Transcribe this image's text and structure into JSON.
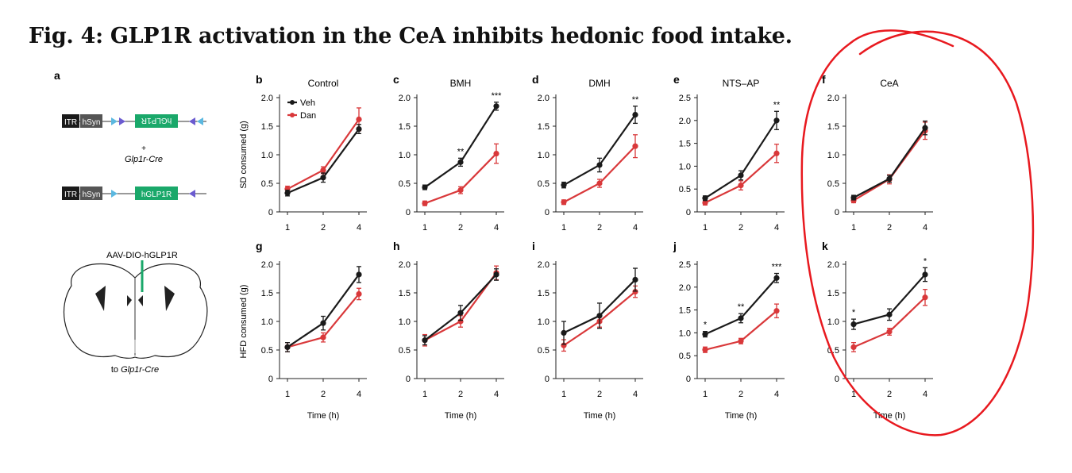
{
  "title": "Fig. 4: GLP1R activation in the CeA inhibits hedonic food intake.",
  "panel_a": {
    "letter": "a",
    "itr": "ITR",
    "hsyn": "hSyn",
    "inverted_gene": "hGLP1R",
    "plus": "+",
    "cre_line": "Glp1r-Cre",
    "gene": "hGLP1R",
    "virus": "AAV-DIO-hGLP1R",
    "target": "to Glp1r-Cre"
  },
  "colors": {
    "veh": "#1a1a1a",
    "dan": "#d9383a",
    "annotation": "#e8191f"
  },
  "row_ylabels": [
    "SD consumed (g)",
    "HFD consumed (g)"
  ],
  "xlabel": "Time (h)",
  "legend": [
    "Veh",
    "Dan"
  ],
  "chart_data": [
    {
      "type": "line",
      "panel": "b",
      "title": "Control",
      "row": 0,
      "ylabel": "SD consumed (g)",
      "x": [
        1,
        2,
        4
      ],
      "ylim": [
        0,
        2.0
      ],
      "yticks": [
        0,
        0.5,
        1.0,
        1.5,
        2.0
      ],
      "series": [
        {
          "name": "Veh",
          "values": [
            0.33,
            0.6,
            1.45
          ],
          "errors": [
            0.05,
            0.08,
            0.08
          ]
        },
        {
          "name": "Dan",
          "values": [
            0.4,
            0.73,
            1.62
          ],
          "errors": [
            0.05,
            0.06,
            0.2
          ]
        }
      ],
      "sig": [
        "",
        "",
        ""
      ],
      "legend": "top-left"
    },
    {
      "type": "line",
      "panel": "c",
      "title": "BMH",
      "row": 0,
      "x": [
        1,
        2,
        4
      ],
      "ylim": [
        0,
        2.0
      ],
      "yticks": [
        0,
        0.5,
        1.0,
        1.5,
        2.0
      ],
      "series": [
        {
          "name": "Veh",
          "values": [
            0.43,
            0.87,
            1.85
          ],
          "errors": [
            0.04,
            0.07,
            0.07
          ]
        },
        {
          "name": "Dan",
          "values": [
            0.15,
            0.38,
            1.02
          ],
          "errors": [
            0.04,
            0.06,
            0.17
          ]
        }
      ],
      "sig": [
        "",
        "**",
        "***"
      ]
    },
    {
      "type": "line",
      "panel": "d",
      "title": "DMH",
      "row": 0,
      "x": [
        1,
        2,
        4
      ],
      "ylim": [
        0,
        2.0
      ],
      "yticks": [
        0,
        0.5,
        1.0,
        1.5,
        2.0
      ],
      "series": [
        {
          "name": "Veh",
          "values": [
            0.47,
            0.82,
            1.7
          ],
          "errors": [
            0.05,
            0.12,
            0.15
          ]
        },
        {
          "name": "Dan",
          "values": [
            0.17,
            0.5,
            1.15
          ],
          "errors": [
            0.04,
            0.07,
            0.2
          ]
        }
      ],
      "sig": [
        "",
        "",
        "**"
      ]
    },
    {
      "type": "line",
      "panel": "e",
      "title": "NTS–AP",
      "row": 0,
      "x": [
        1,
        2,
        4
      ],
      "ylim": [
        0,
        2.5
      ],
      "yticks": [
        0,
        0.5,
        1.0,
        1.5,
        2.0,
        2.5
      ],
      "series": [
        {
          "name": "Veh",
          "values": [
            0.3,
            0.8,
            2.0
          ],
          "errors": [
            0.05,
            0.1,
            0.2
          ]
        },
        {
          "name": "Dan",
          "values": [
            0.2,
            0.58,
            1.28
          ],
          "errors": [
            0.05,
            0.1,
            0.2
          ]
        }
      ],
      "sig": [
        "",
        "",
        "**"
      ]
    },
    {
      "type": "line",
      "panel": "f",
      "title": "CeA",
      "row": 0,
      "x": [
        1,
        2,
        4
      ],
      "ylim": [
        0,
        2.0
      ],
      "yticks": [
        0,
        0.5,
        1.0,
        1.5,
        2.0
      ],
      "series": [
        {
          "name": "Veh",
          "values": [
            0.25,
            0.58,
            1.47
          ],
          "errors": [
            0.04,
            0.06,
            0.12
          ]
        },
        {
          "name": "Dan",
          "values": [
            0.2,
            0.57,
            1.42
          ],
          "errors": [
            0.04,
            0.08,
            0.15
          ]
        }
      ],
      "sig": [
        "",
        "",
        ""
      ]
    },
    {
      "type": "line",
      "panel": "g",
      "row": 1,
      "ylabel": "HFD consumed (g)",
      "x": [
        1,
        2,
        4
      ],
      "ylim": [
        0,
        2.0
      ],
      "yticks": [
        0,
        0.5,
        1.0,
        1.5,
        2.0
      ],
      "series": [
        {
          "name": "Veh",
          "values": [
            0.55,
            0.97,
            1.82
          ],
          "errors": [
            0.08,
            0.12,
            0.14
          ]
        },
        {
          "name": "Dan",
          "values": [
            0.55,
            0.72,
            1.48
          ],
          "errors": [
            0.08,
            0.08,
            0.1
          ]
        }
      ],
      "sig": [
        "",
        "",
        ""
      ]
    },
    {
      "type": "line",
      "panel": "h",
      "row": 1,
      "x": [
        1,
        2,
        4
      ],
      "ylim": [
        0,
        2.0
      ],
      "yticks": [
        0,
        0.5,
        1.0,
        1.5,
        2.0
      ],
      "series": [
        {
          "name": "Veh",
          "values": [
            0.67,
            1.15,
            1.82
          ],
          "errors": [
            0.08,
            0.13,
            0.1
          ]
        },
        {
          "name": "Dan",
          "values": [
            0.67,
            1.0,
            1.85
          ],
          "errors": [
            0.1,
            0.1,
            0.12
          ]
        }
      ],
      "sig": [
        "",
        "",
        ""
      ]
    },
    {
      "type": "line",
      "panel": "i",
      "row": 1,
      "x": [
        1,
        2,
        4
      ],
      "ylim": [
        0,
        2.0
      ],
      "yticks": [
        0,
        0.5,
        1.0,
        1.5,
        2.0
      ],
      "series": [
        {
          "name": "Veh",
          "values": [
            0.8,
            1.1,
            1.73
          ],
          "errors": [
            0.2,
            0.22,
            0.2
          ]
        },
        {
          "name": "Dan",
          "values": [
            0.58,
            1.0,
            1.52
          ],
          "errors": [
            0.1,
            0.1,
            0.1
          ]
        }
      ],
      "sig": [
        "",
        "",
        ""
      ]
    },
    {
      "type": "line",
      "panel": "j",
      "row": 1,
      "x": [
        1,
        2,
        4
      ],
      "ylim": [
        0,
        2.5
      ],
      "yticks": [
        0,
        0.5,
        1.0,
        1.5,
        2.0,
        2.5
      ],
      "series": [
        {
          "name": "Veh",
          "values": [
            0.97,
            1.32,
            2.2
          ],
          "errors": [
            0.06,
            0.1,
            0.1
          ]
        },
        {
          "name": "Dan",
          "values": [
            0.63,
            0.82,
            1.48
          ],
          "errors": [
            0.06,
            0.06,
            0.15
          ]
        }
      ],
      "sig": [
        "*",
        "**",
        "***"
      ]
    },
    {
      "type": "line",
      "panel": "k",
      "row": 1,
      "x": [
        1,
        2,
        4
      ],
      "ylim": [
        0,
        2.0
      ],
      "yticks": [
        0,
        0.5,
        1.0,
        1.5,
        2.0
      ],
      "series": [
        {
          "name": "Veh",
          "values": [
            0.95,
            1.12,
            1.82
          ],
          "errors": [
            0.09,
            0.1,
            0.12
          ]
        },
        {
          "name": "Dan",
          "values": [
            0.55,
            0.82,
            1.42
          ],
          "errors": [
            0.08,
            0.06,
            0.14
          ]
        }
      ],
      "sig": [
        "*",
        "",
        "*"
      ]
    }
  ]
}
